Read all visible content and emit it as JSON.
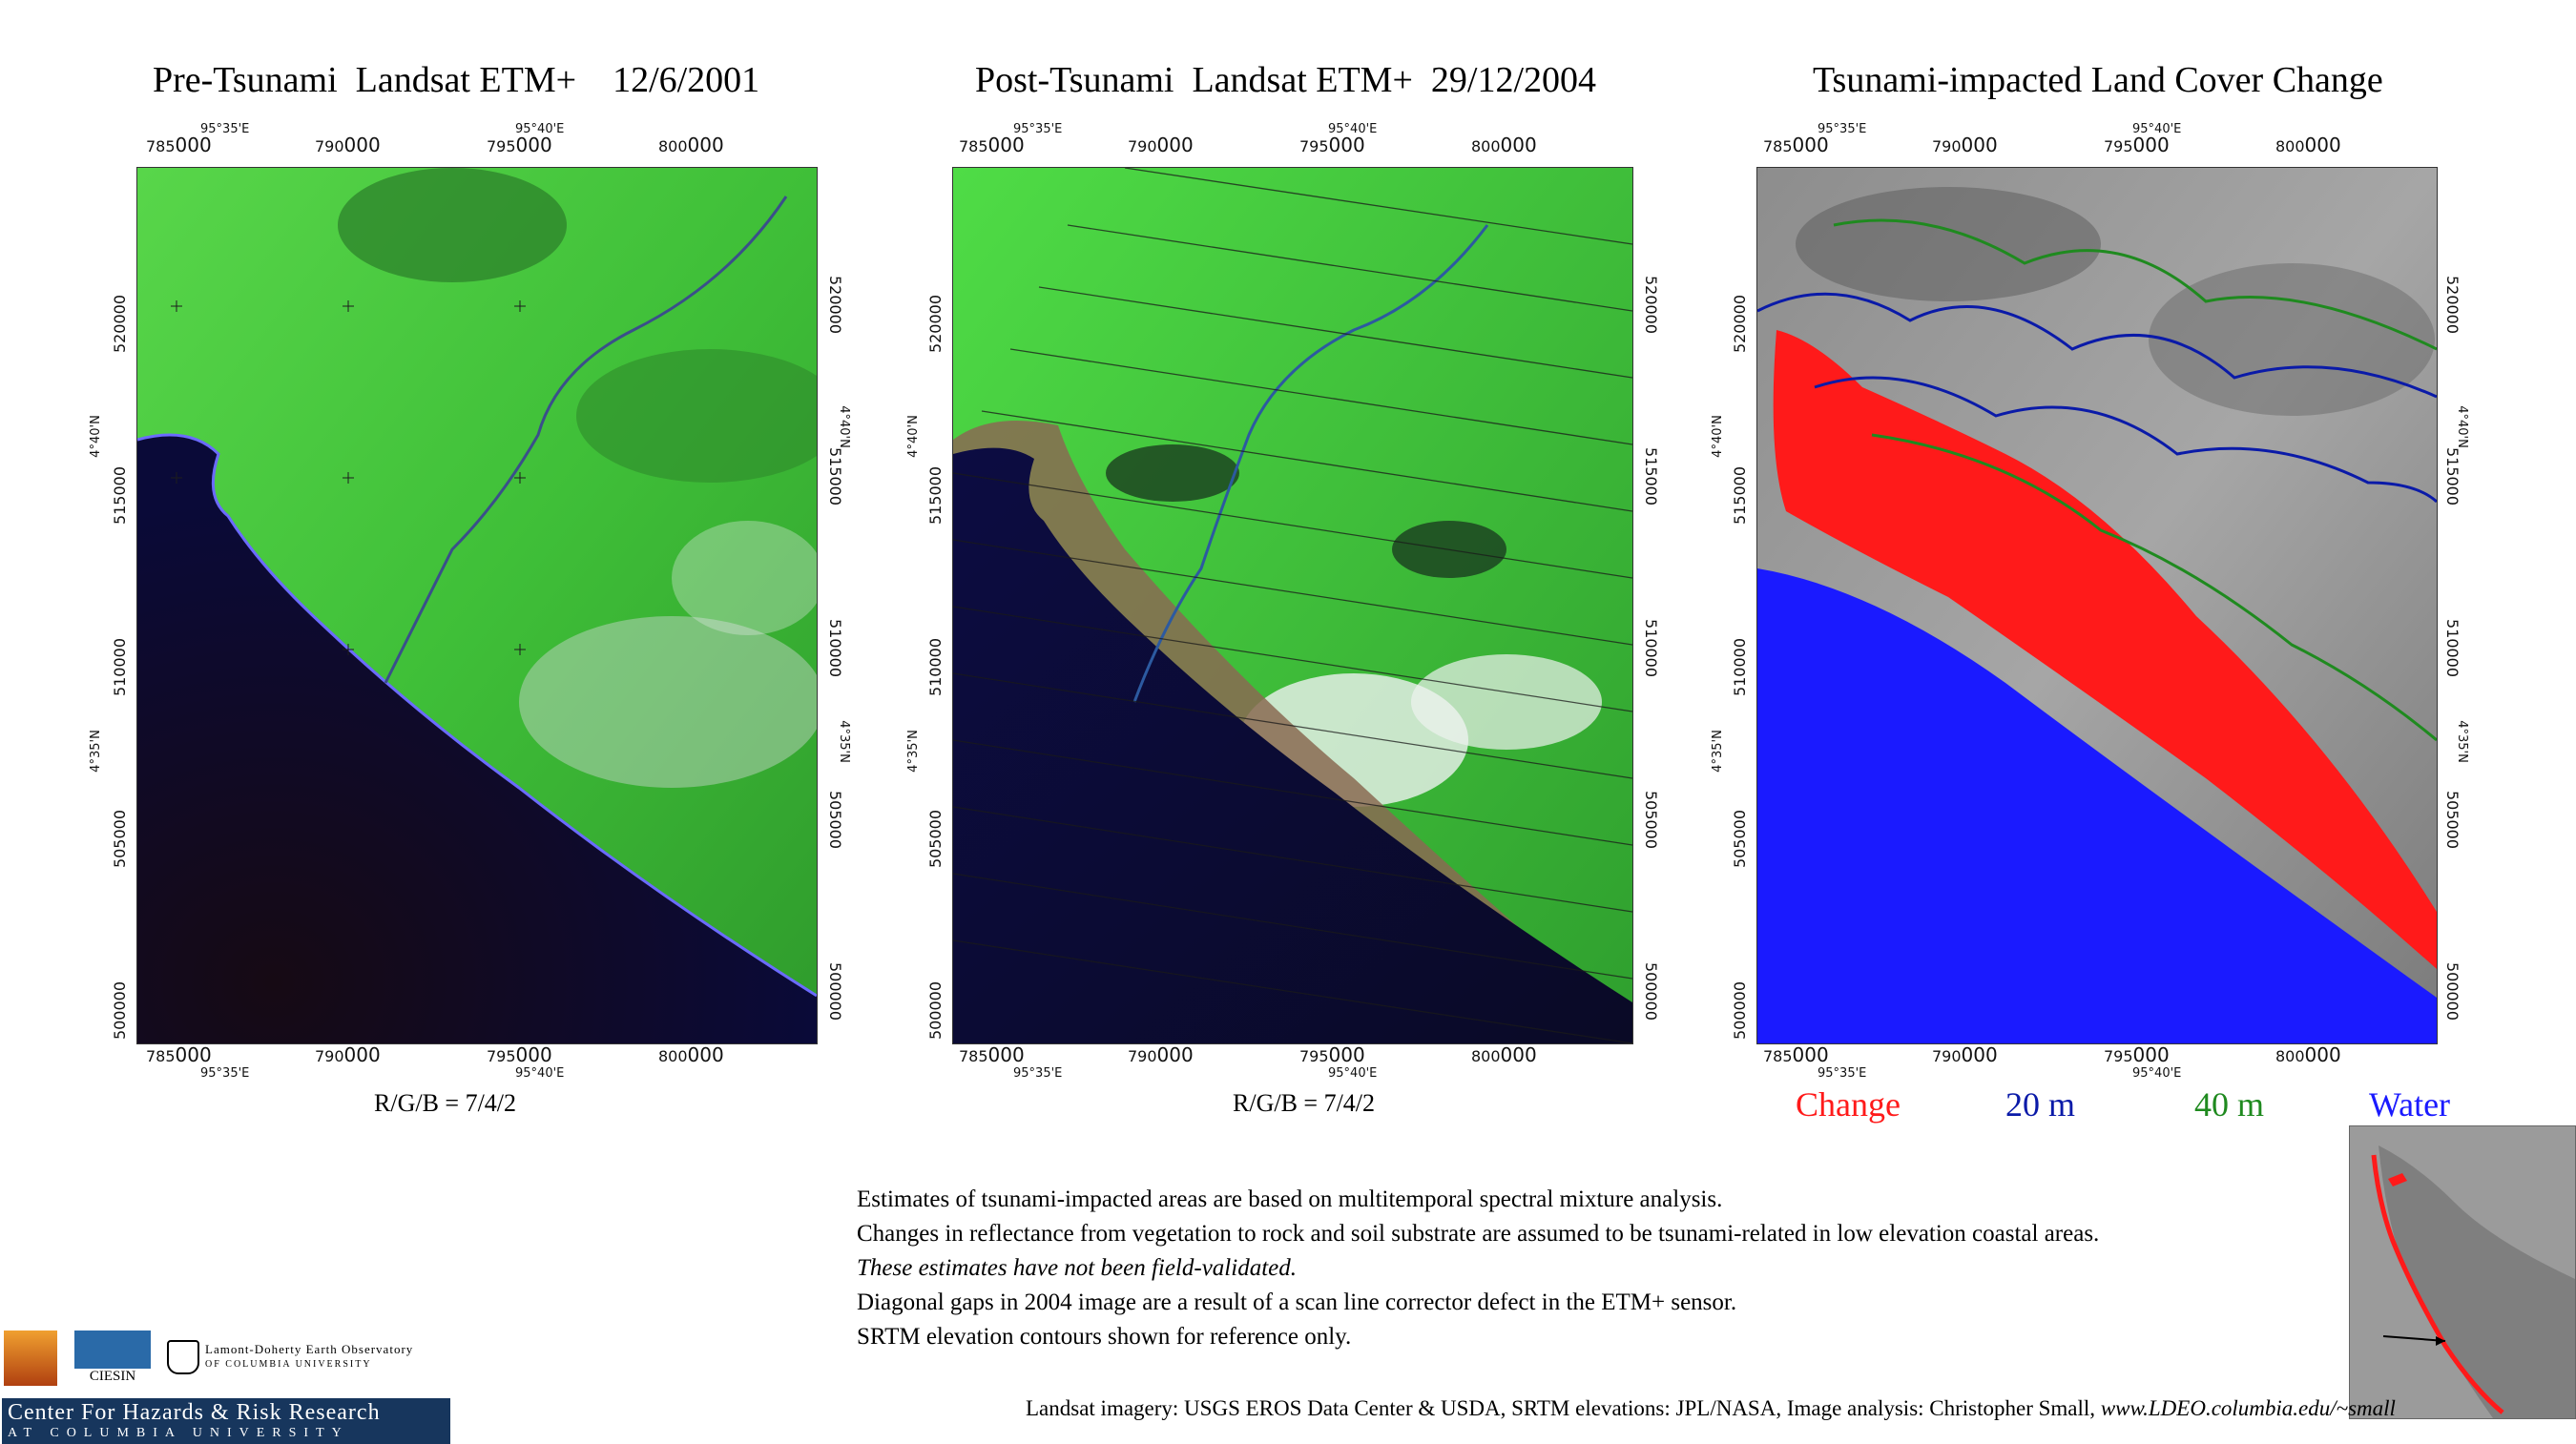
{
  "panels": [
    {
      "title": "Pre-Tsunami  Landsat ETM+    12/6/2001",
      "caption": "R/G/B = 7/4/2"
    },
    {
      "title": "Post-Tsunami  Landsat ETM+  29/12/2004",
      "caption": "R/G/B = 7/4/2"
    },
    {
      "title": "Tsunami-impacted Land Cover Change",
      "caption": ""
    }
  ],
  "easting_labels": [
    "785",
    "790",
    "795",
    "800"
  ],
  "easting_suffix": "000",
  "northing_labels": [
    "520",
    "515",
    "510",
    "505",
    "500"
  ],
  "northing_suffix": "000",
  "lon_labels": [
    "95°35'E",
    "95°40'E"
  ],
  "lat_labels": [
    "4°40'N",
    "4°35'N"
  ],
  "legend": [
    {
      "label": "Change",
      "color": "#ff1a1a"
    },
    {
      "label": "20 m",
      "color": "#0a1aa8"
    },
    {
      "label": "40 m",
      "color": "#1f8a1f"
    },
    {
      "label": "Water",
      "color": "#1a1aff"
    }
  ],
  "notes": [
    {
      "text": "Estimates of tsunami-impacted areas are based on multitemporal spectral mixture analysis.",
      "italic": false
    },
    {
      "text": "Changes in reflectance from vegetation to rock and soil substrate are assumed to be tsunami-related in low elevation coastal areas.",
      "italic": false
    },
    {
      "text": "These estimates have not been field-validated.",
      "italic": true
    },
    {
      "text": "Diagonal gaps in 2004 image are a result of a scan line corrector defect in the ETM+ sensor.",
      "italic": false
    },
    {
      "text": "SRTM elevation contours shown for reference only.",
      "italic": false
    }
  ],
  "credits": {
    "text": "Landsat imagery: USGS EROS Data Center & USDA,  SRTM elevations: JPL/NASA,   Image analysis:  Christopher Small,  ",
    "url": "www.LDEO.columbia.edu/~small"
  },
  "logos": {
    "ldeo_line1": "Lamont-Doherty Earth Observatory",
    "ldeo_line2": "OF COLUMBIA UNIVERSITY",
    "ciesin": "CIESIN",
    "chrr_line1": "Center For Hazards & Risk Research",
    "chrr_line2": "AT COLUMBIA UNIVERSITY"
  },
  "colors": {
    "vegetation": "#3fc63a",
    "water": "#0c0c3a",
    "change": "#ff1a1a",
    "contour20": "#0a1aa8",
    "contour40": "#1f8a1f",
    "water_class": "#1a1aff"
  }
}
